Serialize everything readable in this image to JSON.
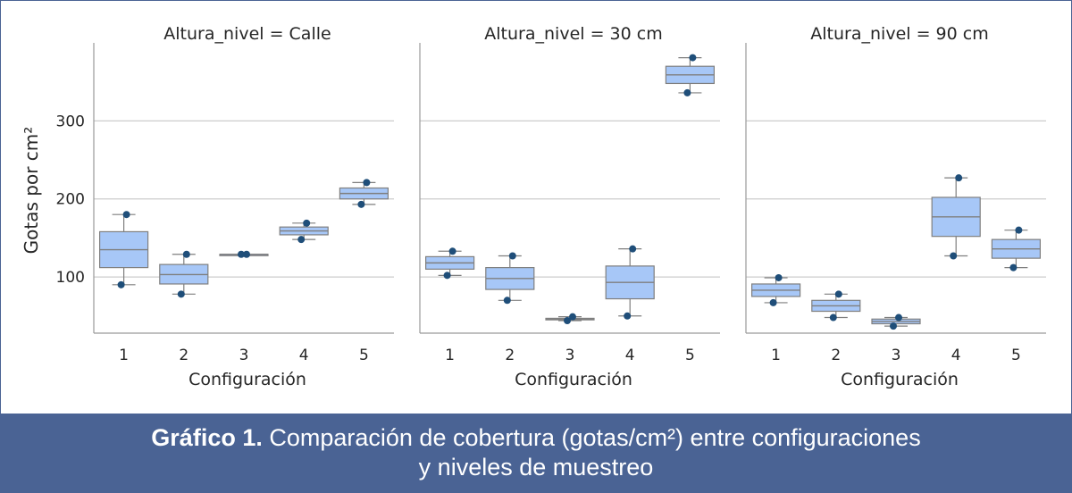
{
  "chart_data": {
    "type": "box",
    "y_label": "Gotas por cm²",
    "x_label": "Configuración",
    "categories": [
      "1",
      "2",
      "3",
      "4",
      "5"
    ],
    "y_ticks": [
      100,
      200,
      300
    ],
    "ylim": [
      28,
      400
    ],
    "colors": {
      "box": "#a7c7f7",
      "edge": "#7f7f7f",
      "point": "#1f4e79",
      "grid": "#cccccc"
    },
    "panels": [
      {
        "title": "Altura_nivel = Calle",
        "boxes": [
          {
            "cat": "1",
            "min": 90,
            "q1": 112,
            "median": 135,
            "q3": 158,
            "max": 180,
            "points": [
              90,
              180
            ]
          },
          {
            "cat": "2",
            "min": 78,
            "q1": 91,
            "median": 103,
            "q3": 116,
            "max": 129,
            "points": [
              78,
              129
            ]
          },
          {
            "cat": "3",
            "min": 129,
            "q1": 129,
            "median": 129,
            "q3": 129,
            "max": 129,
            "points": [
              129,
              129
            ]
          },
          {
            "cat": "4",
            "min": 148,
            "q1": 154,
            "median": 159,
            "q3": 164,
            "max": 169,
            "points": [
              148,
              169
            ]
          },
          {
            "cat": "5",
            "min": 193,
            "q1": 200,
            "median": 207,
            "q3": 214,
            "max": 221,
            "points": [
              193,
              221
            ]
          }
        ]
      },
      {
        "title": "Altura_nivel = 30 cm",
        "boxes": [
          {
            "cat": "1",
            "min": 102,
            "q1": 110,
            "median": 118,
            "q3": 126,
            "max": 133,
            "points": [
              102,
              133
            ]
          },
          {
            "cat": "2",
            "min": 70,
            "q1": 84,
            "median": 98,
            "q3": 112,
            "max": 127,
            "points": [
              70,
              127
            ]
          },
          {
            "cat": "3",
            "min": 44,
            "q1": 45,
            "median": 46,
            "q3": 47,
            "max": 49,
            "points": [
              44,
              49
            ]
          },
          {
            "cat": "4",
            "min": 50,
            "q1": 72,
            "median": 93,
            "q3": 114,
            "max": 136,
            "points": [
              50,
              136
            ]
          },
          {
            "cat": "5",
            "min": 336,
            "q1": 348,
            "median": 359,
            "q3": 370,
            "max": 381,
            "points": [
              336,
              381
            ]
          }
        ]
      },
      {
        "title": "Altura_nivel = 90 cm",
        "boxes": [
          {
            "cat": "1",
            "min": 67,
            "q1": 75,
            "median": 83,
            "q3": 91,
            "max": 99,
            "points": [
              67,
              99
            ]
          },
          {
            "cat": "2",
            "min": 48,
            "q1": 56,
            "median": 63,
            "q3": 70,
            "max": 78,
            "points": [
              48,
              78
            ]
          },
          {
            "cat": "3",
            "min": 37,
            "q1": 40,
            "median": 43,
            "q3": 46,
            "max": 48,
            "points": [
              37,
              48
            ]
          },
          {
            "cat": "4",
            "min": 127,
            "q1": 152,
            "median": 177,
            "q3": 202,
            "max": 227,
            "points": [
              127,
              227
            ]
          },
          {
            "cat": "5",
            "min": 112,
            "q1": 124,
            "median": 136,
            "q3": 148,
            "max": 160,
            "points": [
              112,
              160
            ]
          }
        ]
      }
    ]
  },
  "caption": {
    "bold": "Gráfico 1.",
    "text": " Comparación de cobertura (gotas/cm²) entre configuraciones",
    "line2": "y niveles de muestreo"
  }
}
